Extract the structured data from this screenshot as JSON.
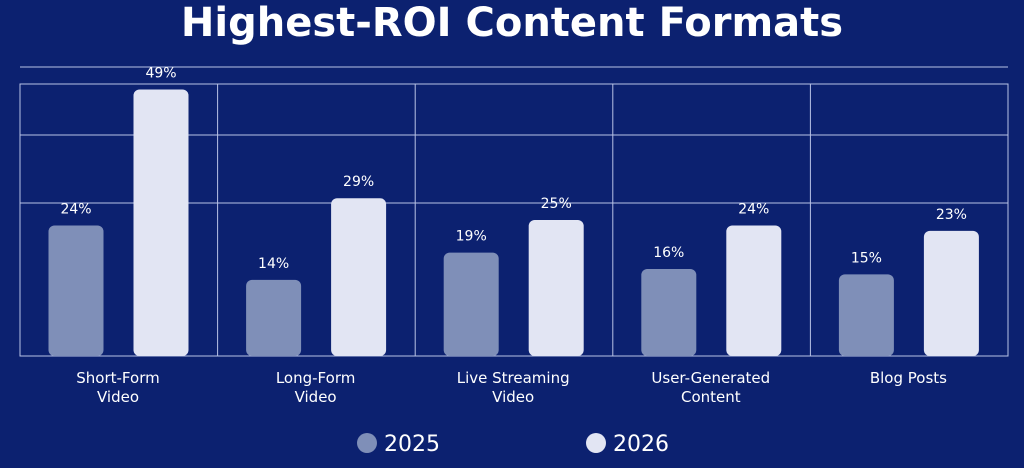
{
  "chart_data": {
    "type": "bar",
    "title": "Highest-ROI Content Formats",
    "categories": [
      [
        "Short-Form",
        "Video"
      ],
      [
        "Long-Form",
        "Video"
      ],
      [
        "Live Streaming",
        "Video"
      ],
      [
        "User-Generated",
        "Content"
      ],
      [
        "Blog Posts"
      ]
    ],
    "series": [
      {
        "name": "2025",
        "values": [
          24,
          14,
          19,
          16,
          15
        ],
        "labels": [
          "24%",
          "14%",
          "19%",
          "16%",
          "15%"
        ],
        "color": "#7f8fb8"
      },
      {
        "name": "2026",
        "values": [
          49,
          29,
          25,
          24,
          23
        ],
        "labels": [
          "49%",
          "29%",
          "25%",
          "24%",
          "23%"
        ],
        "color": "#e2e5f3"
      }
    ],
    "ylim": [
      0,
      50
    ],
    "grid": true,
    "legend_position": "bottom"
  }
}
